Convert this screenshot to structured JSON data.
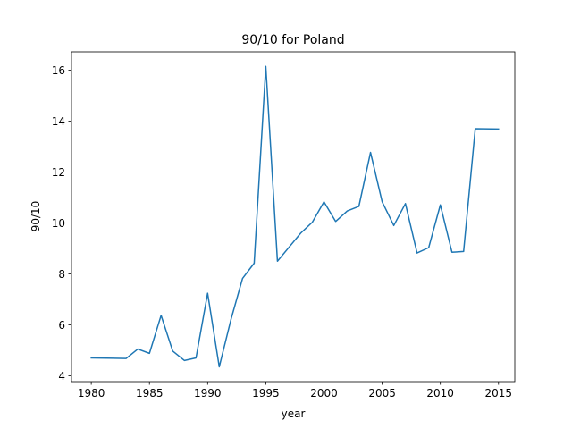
{
  "chart_data": {
    "type": "line",
    "title": "90/10 for Poland",
    "xlabel": "year",
    "ylabel": "90/10",
    "xlim": [
      1978.3,
      2016.4
    ],
    "ylim": [
      3.77,
      16.72
    ],
    "x_ticks": [
      1980,
      1985,
      1990,
      1995,
      2000,
      2005,
      2010,
      2015
    ],
    "y_ticks": [
      4,
      6,
      8,
      10,
      12,
      14,
      16
    ],
    "grid": false,
    "series": [
      {
        "color": "#1f77b4",
        "x": [
          1980,
          1983,
          1984,
          1985,
          1986,
          1987,
          1988,
          1989,
          1990,
          1991,
          1992,
          1993,
          1994,
          1995,
          1996,
          1997,
          1998,
          1999,
          2000,
          2001,
          2002,
          2003,
          2004,
          2005,
          2006,
          2007,
          2008,
          2009,
          2010,
          2011,
          2012,
          2013,
          2015
        ],
        "values": [
          4.7,
          4.68,
          5.05,
          4.88,
          6.37,
          4.97,
          4.6,
          4.7,
          7.24,
          4.35,
          6.2,
          7.82,
          8.42,
          16.15,
          8.5,
          9.05,
          9.6,
          10.03,
          10.83,
          10.06,
          10.47,
          10.65,
          12.77,
          10.83,
          9.9,
          10.76,
          8.82,
          9.03,
          10.71,
          8.85,
          8.88,
          13.7,
          13.69
        ]
      }
    ]
  }
}
